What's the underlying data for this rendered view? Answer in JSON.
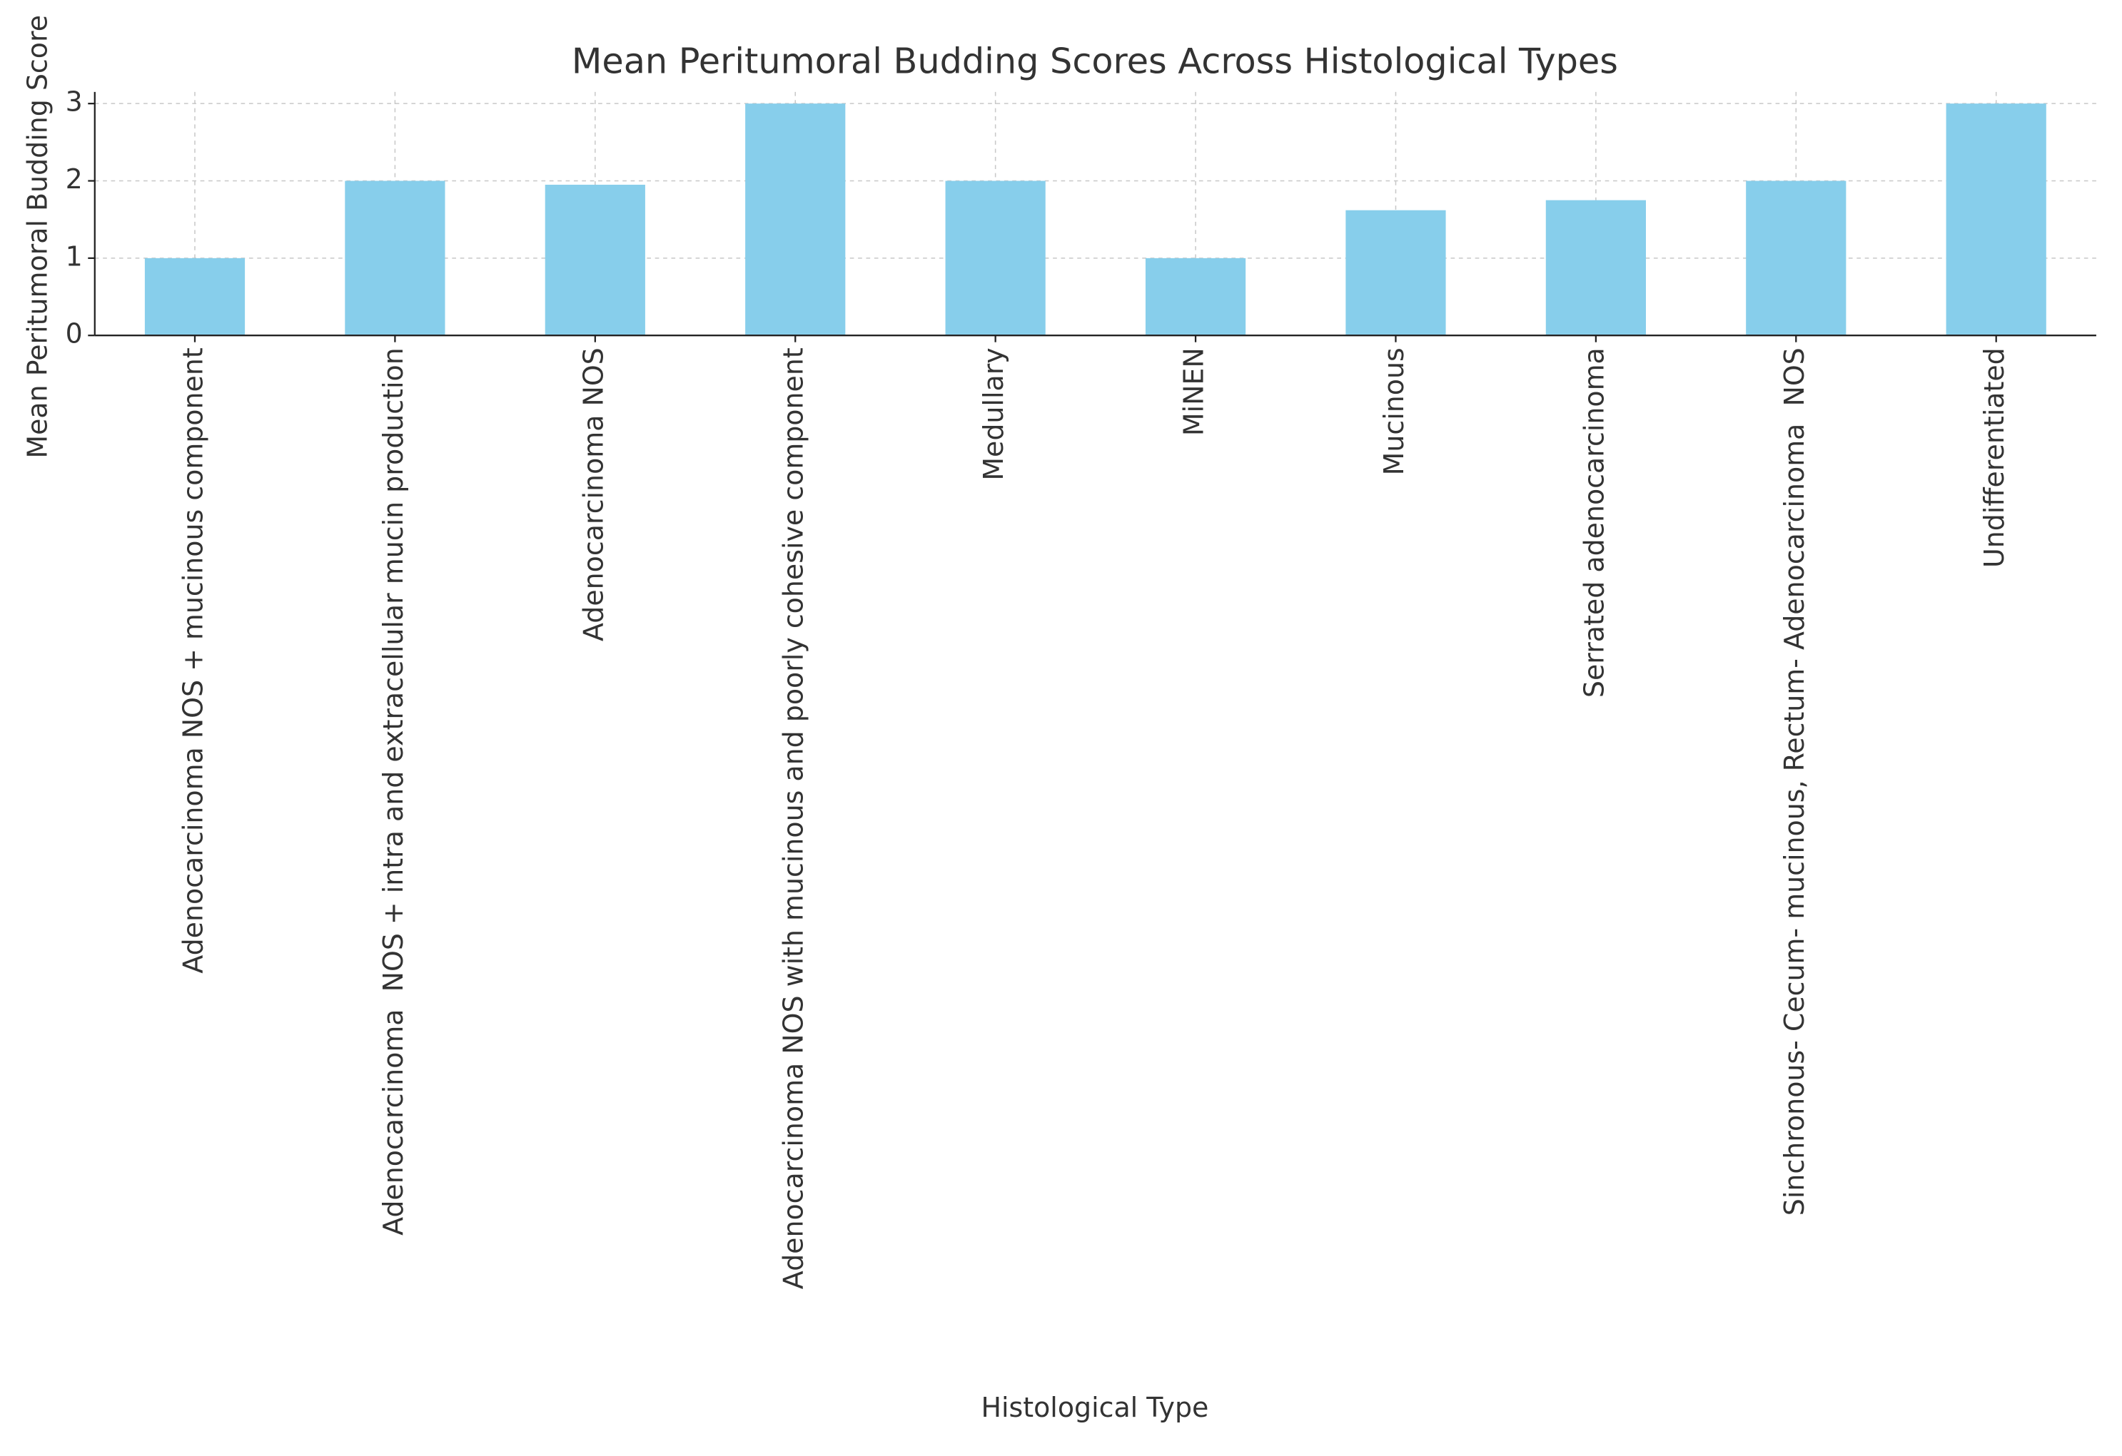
{
  "chart_data": {
    "type": "bar",
    "title": "Mean Peritumoral Budding Scores Across Histological Types",
    "x_label": "Histological Type",
    "y_label": "Mean Peritumoral Budding Score",
    "categories": [
      "Adenocarcinoma NOS + mucinous component",
      "Adenocarcinoma  NOS + intra and extracellular mucin production",
      "Adenocarcinoma NOS",
      "Adenocarcinoma NOS with mucinous and poorly cohesive component",
      "Medullary",
      "MiNEN",
      "Mucinous",
      "Serrated adenocarcinoma",
      "Sinchronous- Cecum- mucinous, Rectum- Adenocarcinoma  NOS",
      "Undifferentiated"
    ],
    "values": [
      1,
      2,
      1.95,
      3,
      2,
      1,
      1.62,
      1.75,
      2,
      3
    ],
    "color": "#87ceeb",
    "ylim": [
      0,
      3.15
    ],
    "yticks": [
      0,
      1,
      2,
      3
    ],
    "grid": true
  }
}
